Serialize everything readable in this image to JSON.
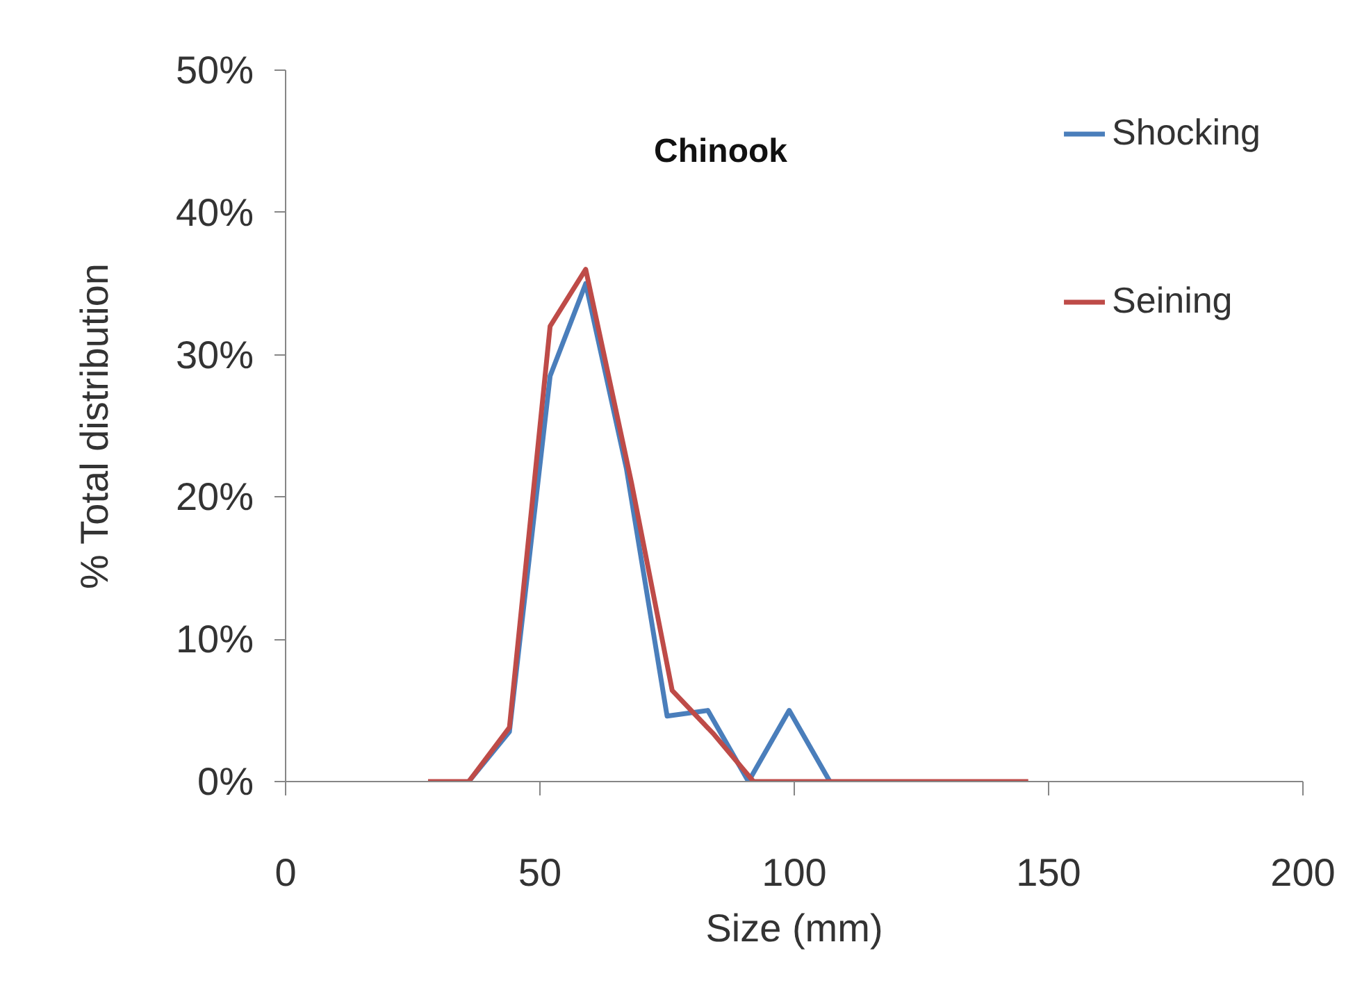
{
  "chart_data": {
    "type": "line",
    "title": "Chinook",
    "xlabel": "Size (mm)",
    "ylabel": "% Total distribution",
    "xlim": [
      0,
      200
    ],
    "xticks": [
      0,
      50,
      100,
      150,
      200
    ],
    "ylim": [
      0,
      50
    ],
    "yticks": [
      {
        "value": 0,
        "label": "0%"
      },
      {
        "value": 10,
        "label": "10%"
      },
      {
        "value": 20,
        "label": "20%"
      },
      {
        "value": 30,
        "label": "30%"
      },
      {
        "value": 40,
        "label": "40%"
      },
      {
        "value": 50,
        "label": "50%"
      }
    ],
    "grid": false,
    "legend": "top right",
    "marker": "none",
    "line_style": "solid",
    "series": [
      {
        "name": "Shocking",
        "color": "#4a7ebb",
        "x": [
          36,
          44,
          52,
          59,
          67,
          75,
          83,
          91,
          99,
          107
        ],
        "values": [
          0,
          3.5,
          28.5,
          35,
          22,
          4.6,
          5,
          0,
          5,
          0
        ]
      },
      {
        "name": "Seining",
        "color": "#be4b48",
        "x": [
          28,
          36,
          44,
          52,
          59,
          68,
          76,
          84,
          92,
          100,
          108,
          116,
          124,
          132,
          140,
          146
        ],
        "values": [
          0,
          0,
          3.8,
          32,
          36,
          21,
          6.4,
          3.4,
          0,
          0,
          0,
          0,
          0,
          0,
          0,
          0
        ]
      }
    ]
  }
}
